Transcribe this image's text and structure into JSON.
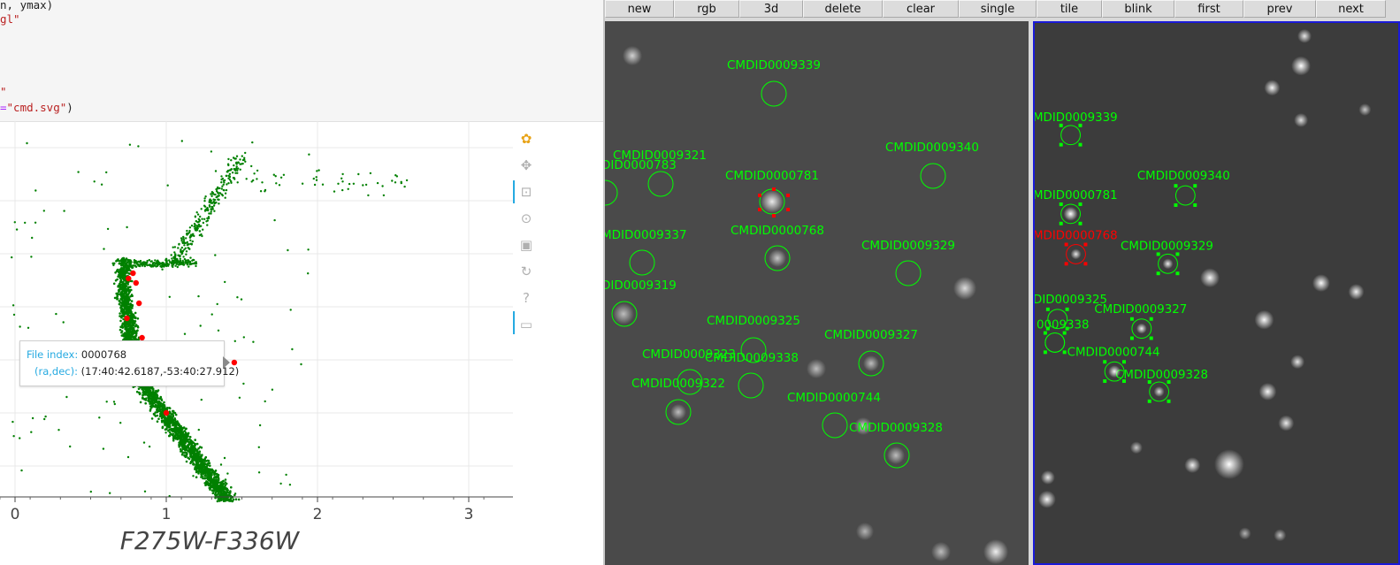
{
  "code": {
    "lines": [
      {
        "parts": [
          {
            "t": "n, ymax)",
            "c": "plain"
          }
        ]
      },
      {
        "parts": [
          {
            "t": "gl\"",
            "c": "str"
          }
        ]
      },
      {
        "parts": [
          {
            "t": "\"",
            "c": "str"
          }
        ]
      },
      {
        "parts": [
          {
            "t": "=",
            "c": "op"
          },
          {
            "t": "\"cmd.svg\"",
            "c": "str"
          },
          {
            "t": ")",
            "c": "plain"
          }
        ]
      }
    ]
  },
  "chart_data": {
    "type": "scatter",
    "xlabel": "F275W-F336W",
    "x_ticks": [
      "0",
      "1",
      "2",
      "3"
    ],
    "xlim": [
      -0.1,
      3.3
    ],
    "series": [
      {
        "color": "#008000",
        "points": "cmd-stars"
      },
      {
        "color": "#ff0000",
        "points": [
          [
            0.78,
            1.0
          ],
          [
            0.75,
            1.4
          ],
          [
            0.8,
            2.2
          ],
          [
            0.82,
            2.6
          ],
          [
            0.74,
            3.0
          ],
          [
            0.84,
            3.5
          ],
          [
            1.0,
            5.3
          ],
          [
            1.45,
            4.1
          ]
        ]
      }
    ]
  },
  "tooltip": {
    "file_index_key": "File index:",
    "file_index_val": "0000768",
    "radec_key": "(ra,dec):",
    "radec_val": "(17:40:42.6187,-53:40:27.912)"
  },
  "toolbar_icons": [
    "bokeh-logo-icon",
    "pan-icon",
    "box-zoom-icon",
    "wheel-zoom-icon",
    "save-icon",
    "reset-icon",
    "help-icon",
    "hover-icon"
  ],
  "ds9": {
    "buttons": [
      "new",
      "rgb",
      "3d",
      "delete",
      "clear",
      "single",
      "tile",
      "blink",
      "first",
      "prev",
      "next"
    ],
    "frame1_regions": [
      {
        "label": "CMDID0009339",
        "color": "#00ff00"
      },
      {
        "label": "CMDID0009321",
        "color": "#00ff00"
      },
      {
        "label": "DID0000783",
        "color": "#00ff00"
      },
      {
        "label": "CMDID0000781",
        "color": "#00ff00"
      },
      {
        "label": "CMDID0009340",
        "color": "#00ff00"
      },
      {
        "label": "CMDID0000768",
        "color": "#00ff00"
      },
      {
        "label": "MDID0009337",
        "color": "#00ff00"
      },
      {
        "label": "CMDID0009329",
        "color": "#00ff00"
      },
      {
        "label": "DID0009319",
        "color": "#00ff00"
      },
      {
        "label": "CMDID0009325",
        "color": "#00ff00"
      },
      {
        "label": "CMDID0009327",
        "color": "#00ff00"
      },
      {
        "label": "CMDID0009323",
        "color": "#00ff00"
      },
      {
        "label": "CMDID0009338",
        "color": "#00ff00"
      },
      {
        "label": "CMDID0009322",
        "color": "#00ff00"
      },
      {
        "label": "CMDID0000744",
        "color": "#00ff00"
      },
      {
        "label": "CMDID0009328",
        "color": "#00ff00"
      }
    ],
    "frame2_regions": [
      {
        "label": "MDID0009339",
        "color": "#00ff00"
      },
      {
        "label": "CMDID0009340",
        "color": "#00ff00"
      },
      {
        "label": "MDID0000781",
        "color": "#00ff00"
      },
      {
        "label": "MDID0000768",
        "color": "#ff0000"
      },
      {
        "label": "CMDID0009329",
        "color": "#00ff00"
      },
      {
        "label": "DID0009325",
        "color": "#00ff00"
      },
      {
        "label": "CMDID0009327",
        "color": "#00ff00"
      },
      {
        "label": "0009338",
        "color": "#00ff00"
      },
      {
        "label": "CMDID0000744",
        "color": "#00ff00"
      },
      {
        "label": "CMDID0009328",
        "color": "#00ff00"
      }
    ]
  }
}
